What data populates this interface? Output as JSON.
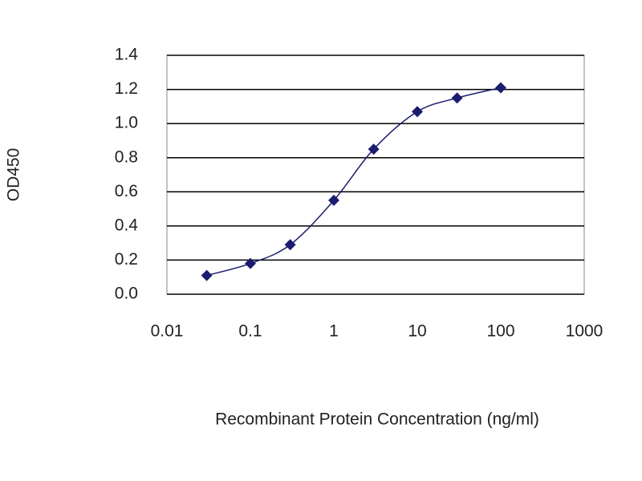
{
  "chart_data": {
    "type": "line",
    "x_label": "Recombinant Protein Concentration (ng/ml)",
    "y_label": "OD450",
    "x": [
      0.03,
      0.1,
      0.3,
      1,
      3,
      10,
      30,
      100
    ],
    "series": [
      {
        "name": "OD450",
        "color": "#1c1c6e",
        "values": [
          0.11,
          0.18,
          0.29,
          0.55,
          0.85,
          1.07,
          1.15,
          1.21
        ]
      }
    ],
    "x_scale": "log",
    "xlim": [
      0.01,
      1000
    ],
    "xticks": [
      0.01,
      0.1,
      1,
      10,
      100,
      1000
    ],
    "ylim": [
      0,
      1.4
    ],
    "yticks": [
      {
        "value": 0,
        "label": "0.0"
      },
      0.2,
      0.4,
      0.6,
      0.8,
      {
        "value": 1,
        "label": "1.0"
      },
      1.2,
      1.4
    ],
    "grid": true
  }
}
